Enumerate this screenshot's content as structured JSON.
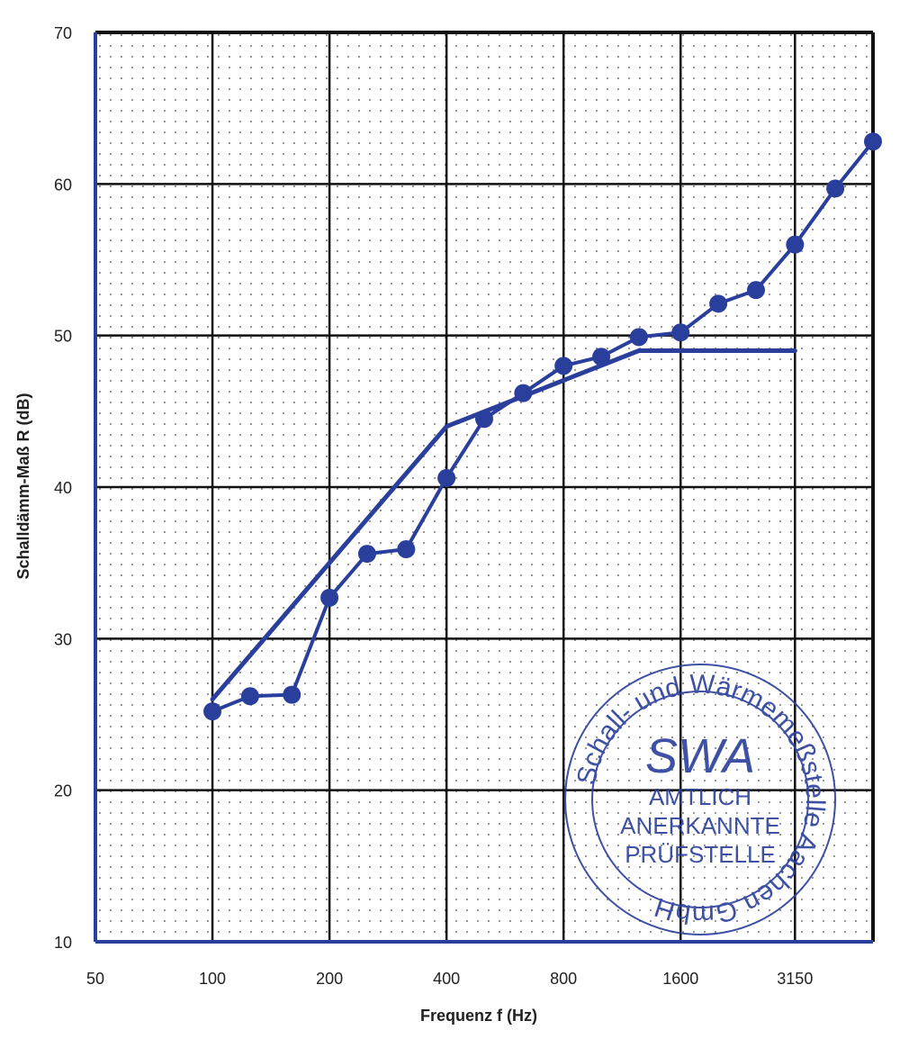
{
  "chart_data": {
    "type": "line",
    "title": "",
    "xlabel": "Frequenz f (Hz)",
    "ylabel": "Schalldämm-Maß R (dB)",
    "x_scale": "log",
    "x_tick_labels": [
      "50",
      "100",
      "200",
      "400",
      "800",
      "1600",
      "3150"
    ],
    "x_ticks": [
      50,
      100,
      200,
      400,
      800,
      1600,
      3150
    ],
    "xlim": [
      50,
      5000
    ],
    "ylim": [
      10,
      70
    ],
    "y_ticks": [
      10,
      20,
      30,
      40,
      50,
      60,
      70
    ],
    "grid": true,
    "series": [
      {
        "marker": "circle",
        "color": "#2a3f9c",
        "x": [
          100,
          125,
          160,
          200,
          250,
          315,
          400,
          500,
          630,
          800,
          1000,
          1250,
          1600,
          2000,
          2500,
          3150,
          4000,
          5000
        ],
        "y": [
          25.2,
          26.2,
          26.3,
          32.7,
          35.6,
          35.9,
          40.6,
          44.5,
          46.2,
          48.0,
          48.6,
          49.9,
          50.2,
          52.1,
          53.0,
          56.0,
          59.7,
          62.8
        ]
      },
      {
        "marker": "none",
        "color": "#2a3f9c",
        "x": [
          100,
          400,
          1250,
          3150
        ],
        "y": [
          26,
          44,
          49,
          49
        ]
      }
    ]
  },
  "stamp": {
    "logo": "SWA",
    "ring_text": "Schall- und Wärmemeßstelle Aachen GmbH",
    "lines": [
      "AMTLICH",
      "ANERKANNTE",
      "PRÜFSTELLE"
    ]
  },
  "colors": {
    "line": "#2a3f9c",
    "grid": "#111111",
    "stamp": "#2a3f9c"
  }
}
